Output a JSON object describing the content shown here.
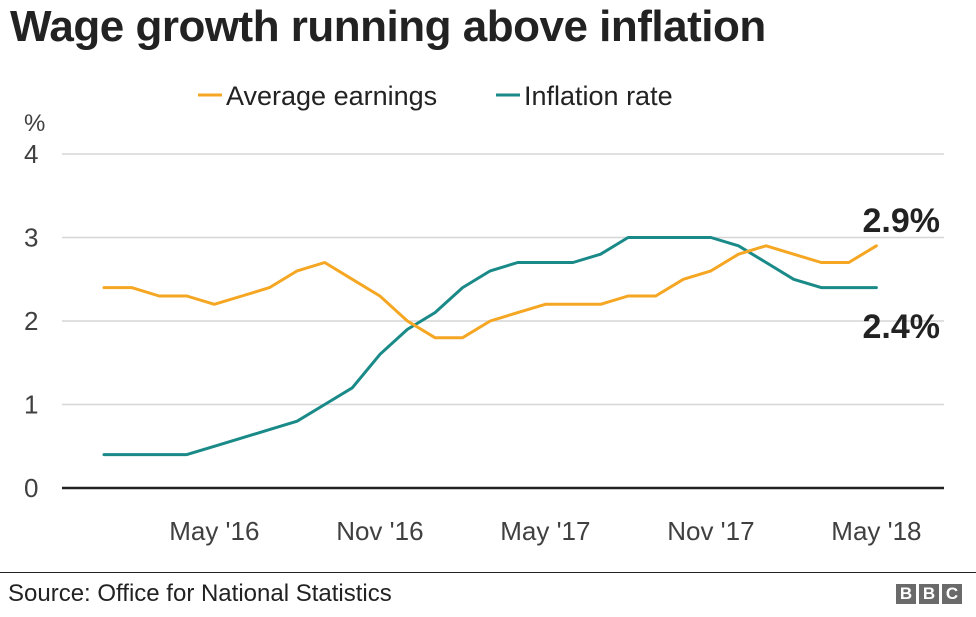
{
  "chart_data": {
    "type": "line",
    "title": "Wage growth running above inflation",
    "ylabel": "%",
    "ylim": [
      0,
      4
    ],
    "yticks": [
      "0",
      "1",
      "2",
      "3",
      "4"
    ],
    "x_ticks": [
      "May '16",
      "Nov '16",
      "May '17",
      "Nov '17",
      "May '18"
    ],
    "x_tick_positions": [
      4,
      10,
      16,
      22,
      28
    ],
    "x_range": [
      0,
      29
    ],
    "grid": true,
    "legend_position": "top",
    "series": [
      {
        "name": "Average earnings",
        "color": "#f5a623",
        "end_label": "2.9%",
        "values": [
          2.4,
          2.4,
          2.3,
          2.3,
          2.2,
          2.3,
          2.4,
          2.6,
          2.7,
          2.5,
          2.3,
          2.0,
          1.8,
          1.8,
          2.0,
          2.1,
          2.2,
          2.2,
          2.2,
          2.3,
          2.3,
          2.5,
          2.6,
          2.8,
          2.9,
          2.8,
          2.7,
          2.7,
          2.9
        ]
      },
      {
        "name": "Inflation rate",
        "color": "#1a8a89",
        "end_label": "2.4%",
        "values": [
          0.4,
          0.4,
          0.4,
          0.4,
          0.5,
          0.6,
          0.7,
          0.8,
          1.0,
          1.2,
          1.6,
          1.9,
          2.1,
          2.4,
          2.6,
          2.7,
          2.7,
          2.7,
          2.8,
          3.0,
          3.0,
          3.0,
          3.0,
          2.9,
          2.7,
          2.5,
          2.4,
          2.4,
          2.4
        ]
      }
    ]
  },
  "footer": {
    "source": "Source: Office for National Statistics",
    "logo_letters": [
      "B",
      "B",
      "C"
    ]
  }
}
